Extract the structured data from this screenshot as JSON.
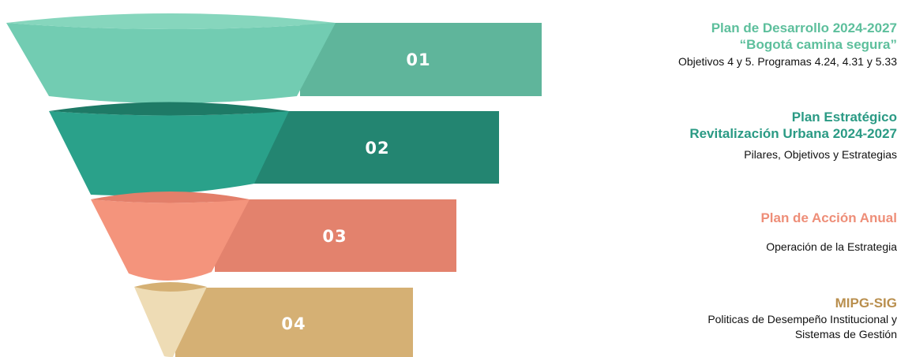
{
  "colors": {
    "stage1": {
      "light": "#72ccb2",
      "band": "#5fb59b",
      "rim": "#86d6bd"
    },
    "stage2": {
      "light": "#2aa18a",
      "band": "#238571",
      "rim": "#1e7a66"
    },
    "stage3": {
      "light": "#f4947c",
      "band": "#e3826d",
      "rim": "#e37f6a"
    },
    "stage4": {
      "light": "#eedcb5",
      "band": "#d5b074",
      "rim": "#d5b074"
    }
  },
  "stages": [
    {
      "number": "01",
      "title_lines": [
        "Plan de Desarrollo 2024-2027",
        "“Bogotá  camina segura”"
      ],
      "body_lines": [
        "Objetivos 4 y 5. Programas 4.24, 4.31 y 5.33"
      ]
    },
    {
      "number": "02",
      "title_lines": [
        "Plan Estratégico",
        "Revitalización Urbana 2024-2027"
      ],
      "body_lines": [
        "Pilares, Objetivos y Estrategias"
      ]
    },
    {
      "number": "03",
      "title_lines": [
        "Plan de Acción Anual"
      ],
      "body_lines": [
        "Operación de la Estrategia"
      ]
    },
    {
      "number": "04",
      "title_lines": [
        "MIPG-SIG"
      ],
      "body_lines": [
        "Politicas de Desempeño Institucional y",
        "Sistemas de Gestión"
      ]
    }
  ]
}
